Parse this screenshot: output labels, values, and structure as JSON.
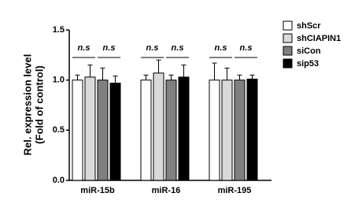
{
  "chart_data": {
    "type": "bar",
    "ylabel": [
      "Rel. expression level",
      "(Fold of control)"
    ],
    "categories": [
      "miR-15b",
      "miR-16",
      "miR-195"
    ],
    "series": [
      {
        "name": "shScr",
        "color": "#ffffff",
        "values": [
          1.0,
          1.0,
          1.0
        ],
        "errors": [
          0.05,
          0.05,
          0.17
        ]
      },
      {
        "name": "shCIAPIN1",
        "color": "#d9d9d9",
        "values": [
          1.03,
          1.07,
          1.0
        ],
        "errors": [
          0.12,
          0.13,
          0.12
        ]
      },
      {
        "name": "siCon",
        "color": "#808080",
        "values": [
          1.0,
          1.0,
          1.0
        ],
        "errors": [
          0.12,
          0.05,
          0.05
        ]
      },
      {
        "name": "sip53",
        "color": "#000000",
        "values": [
          0.97,
          1.03,
          1.01
        ],
        "errors": [
          0.07,
          0.12,
          0.04
        ]
      }
    ],
    "annotations": [
      "n.s",
      "n.s",
      "n.s",
      "n.s",
      "n.s",
      "n.s"
    ],
    "ylim": [
      0,
      1.5
    ],
    "yticks": [
      {
        "value": 0,
        "label": "0.0"
      },
      0.5,
      {
        "value": 1,
        "label": "1.0"
      },
      1.5
    ],
    "legend": "right"
  }
}
